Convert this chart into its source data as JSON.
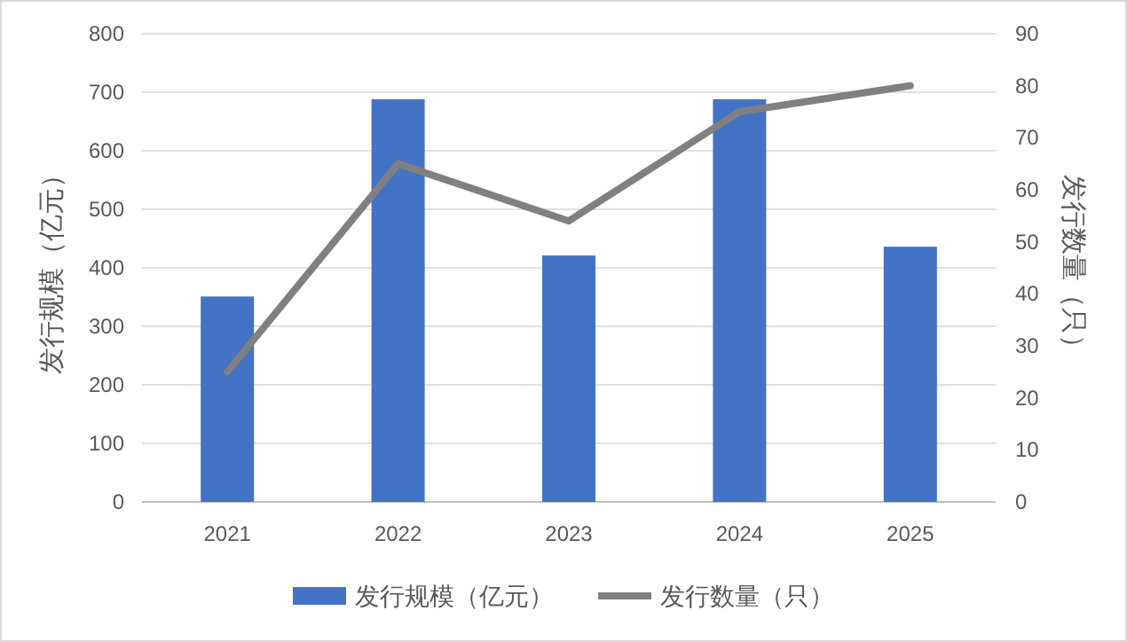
{
  "chart_data": {
    "type": "bar",
    "categories": [
      "2021",
      "2022",
      "2023",
      "2024",
      "2025"
    ],
    "series": [
      {
        "name": "发行规模（亿元）",
        "color": "#4472c4",
        "values": [
          351,
          688,
          421,
          688,
          436
        ]
      },
      {
        "name": "发行数量（只）",
        "type": "line",
        "axis": "y2",
        "color": "#808080",
        "values": [
          25,
          65,
          54,
          75,
          80
        ]
      }
    ],
    "ylabel": "发行规模（亿元）",
    "y2label": "发行数量（只）",
    "ylim": [
      0,
      800
    ],
    "yticks": [
      0,
      100,
      200,
      300,
      400,
      500,
      600,
      700,
      800
    ],
    "y2lim": [
      0,
      90
    ],
    "y2ticks": [
      0,
      10,
      20,
      30,
      40,
      50,
      60,
      70,
      80,
      90
    ],
    "grid": "y",
    "legend": "bottom",
    "marker": "none",
    "line_style": "solid"
  }
}
